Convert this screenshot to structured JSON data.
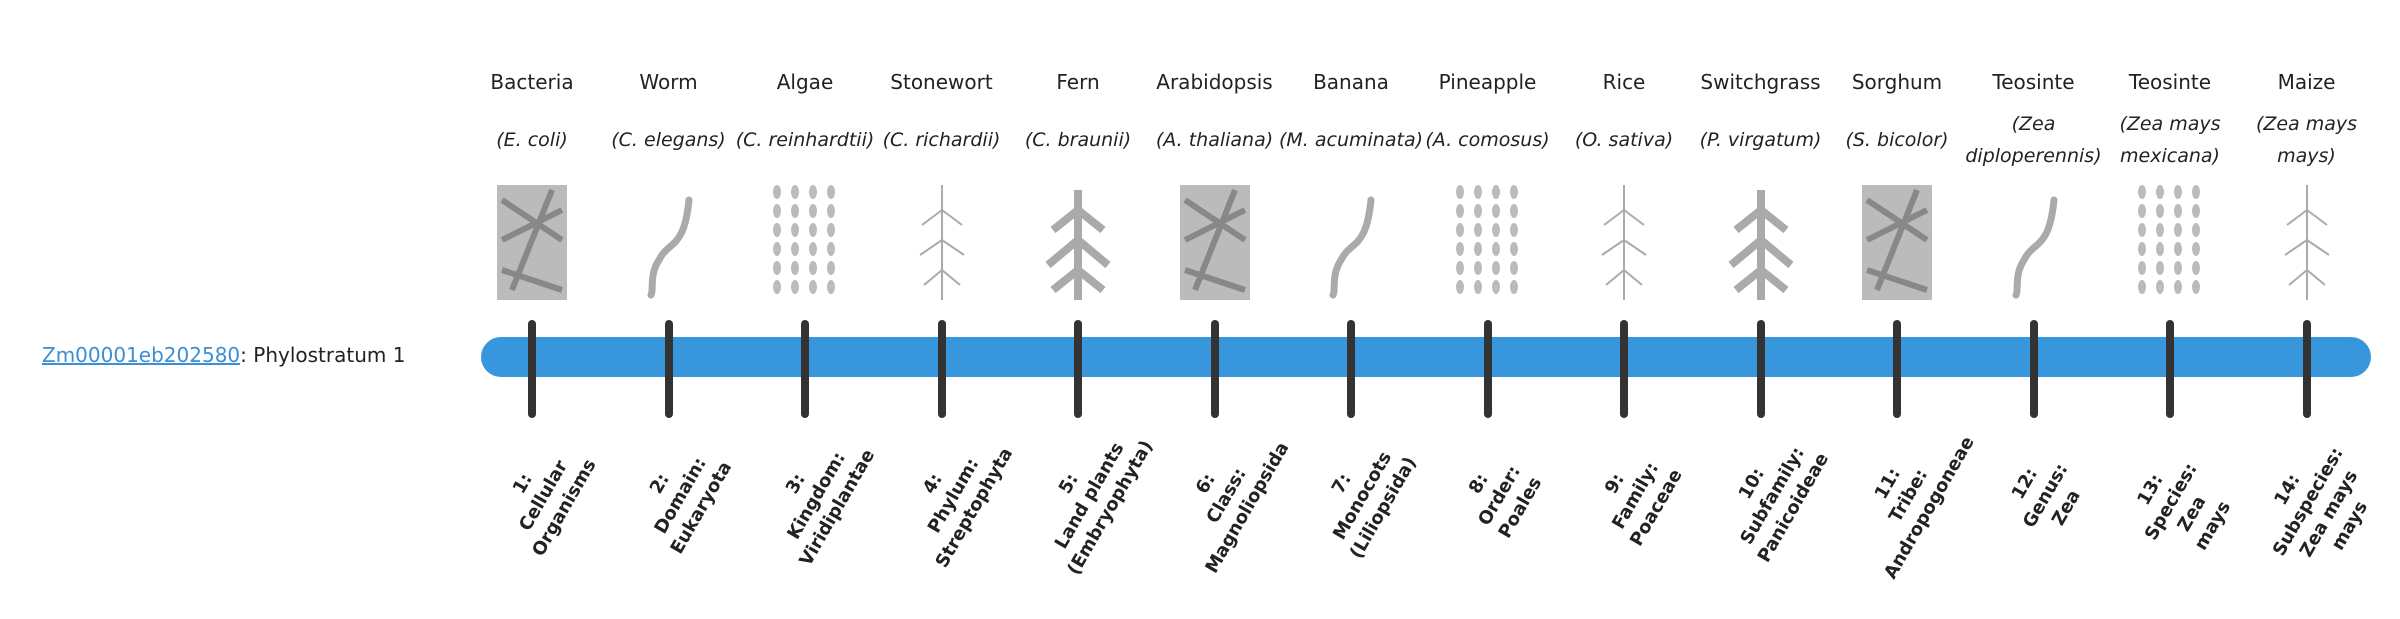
{
  "gene": {
    "id": "Zm00001eb202580",
    "suffix": ": Phylostratum 1"
  },
  "colors": {
    "bar": "#3897dc",
    "tick": "#333333",
    "link": "#3a8fd6"
  },
  "organisms": [
    {
      "common": "Bacteria",
      "scientific": "(E. coli)",
      "icon": "bacteria-illustration",
      "rank": "1:\nCellular\nOrganisms"
    },
    {
      "common": "Worm",
      "scientific": "(C. elegans)",
      "icon": "worm-illustration",
      "rank": "2:\nDomain:\nEukaryota"
    },
    {
      "common": "Algae",
      "scientific": "(C. reinhardtii)",
      "icon": "algae-illustration",
      "rank": "3:\nKingdom:\nViridiplantae"
    },
    {
      "common": "Stonewort",
      "scientific": "(C. richardii)",
      "icon": "stonewort-illustration",
      "rank": "4:\nPhylum:\nStreptophyta"
    },
    {
      "common": "Fern",
      "scientific": "(C. braunii)",
      "icon": "fern-illustration",
      "rank": "5:\nLand plants\n(Embryophyta)"
    },
    {
      "common": "Arabidopsis",
      "scientific": "(A. thaliana)",
      "icon": "arabidopsis-illustration",
      "rank": "6:\nClass:\nMagnoliopsida"
    },
    {
      "common": "Banana",
      "scientific": "(M. acuminata)",
      "icon": "banana-illustration",
      "rank": "7:\nMonocots\n(Liliopsida)"
    },
    {
      "common": "Pineapple",
      "scientific": "(A. comosus)",
      "icon": "pineapple-illustration",
      "rank": "8:\nOrder:\nPoales"
    },
    {
      "common": "Rice",
      "scientific": "(O. sativa)",
      "icon": "rice-illustration",
      "rank": "9:\nFamily:\nPoaceae"
    },
    {
      "common": "Switchgrass",
      "scientific": "(P. virgatum)",
      "icon": "switchgrass-illustration",
      "rank": "10:\nSubfamily:\nPanicoideae"
    },
    {
      "common": "Sorghum",
      "scientific": "(S. bicolor)",
      "icon": "sorghum-illustration",
      "rank": "11:\nTribe:\nAndropogoneae"
    },
    {
      "common": "Teosinte",
      "scientific": "(Zea diploperennis)",
      "icon": "teosinte-illustration",
      "rank": "12:\nGenus:\nZea"
    },
    {
      "common": "Teosinte",
      "scientific": "(Zea mays mexicana)",
      "icon": "teosinte-illustration",
      "rank": "13:\nSpecies:\nZea\nmays"
    },
    {
      "common": "Maize",
      "scientific": "(Zea mays mays)",
      "icon": "maize-illustration",
      "rank": "14:\nSubspecies:\nZea mays\nmays"
    }
  ]
}
